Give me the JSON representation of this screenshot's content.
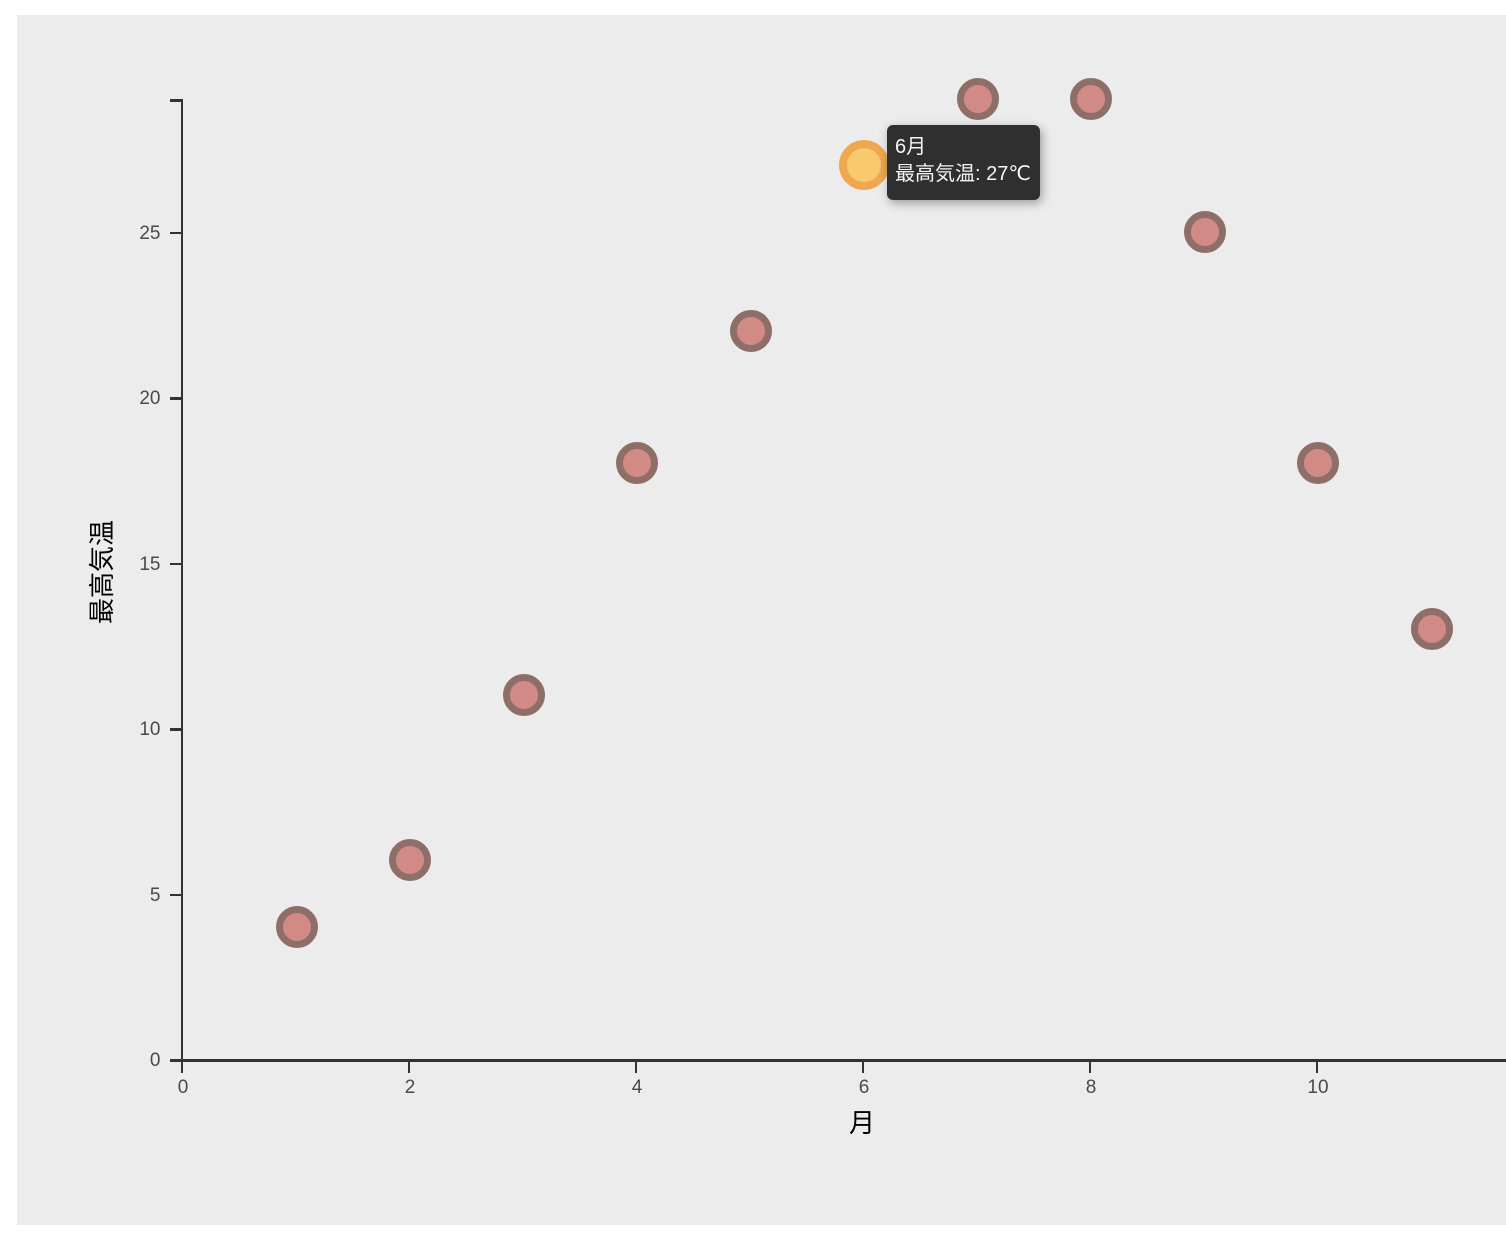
{
  "page": {
    "background": "#ffffff",
    "plot_background": "#ececec"
  },
  "chart_data": {
    "type": "scatter",
    "title": "",
    "x": [
      1,
      2,
      3,
      4,
      5,
      6,
      7,
      8,
      9,
      10,
      11
    ],
    "y": [
      4,
      6,
      11,
      18,
      22,
      27,
      29,
      29,
      25,
      18,
      13
    ],
    "series_name": "最高気温",
    "xlabel": "月",
    "ylabel": "最高気温",
    "xlim": [
      0,
      11.7
    ],
    "ylim": [
      0,
      29
    ],
    "x_ticks": [
      {
        "value": 0,
        "label": "0"
      },
      {
        "value": 2,
        "label": "2"
      },
      {
        "value": 4,
        "label": "4"
      },
      {
        "value": 6,
        "label": "6"
      },
      {
        "value": 8,
        "label": "8"
      },
      {
        "value": 10,
        "label": "10"
      }
    ],
    "y_ticks": [
      {
        "value": 0,
        "label": "0"
      },
      {
        "value": 5,
        "label": "5"
      },
      {
        "value": 10,
        "label": "10"
      },
      {
        "value": 15,
        "label": "15"
      },
      {
        "value": 20,
        "label": "20"
      },
      {
        "value": 25,
        "label": "25"
      }
    ],
    "grid": false,
    "legend_position": "none",
    "highlighted_point": {
      "index": 5,
      "x": 6,
      "y": 27
    }
  },
  "colors": {
    "axis": "#333333",
    "tick_label": "#4a4a4a",
    "point_fill": "#d28a87",
    "point_border": "#8e6f68",
    "highlight_fill": "#f8ca6d",
    "highlight_border": "#f0a850",
    "tooltip_background": "#2f2f2f",
    "tooltip_text": "#f5f5f5"
  },
  "tooltip": {
    "title": "6月",
    "value": "最高気温: 27℃"
  }
}
